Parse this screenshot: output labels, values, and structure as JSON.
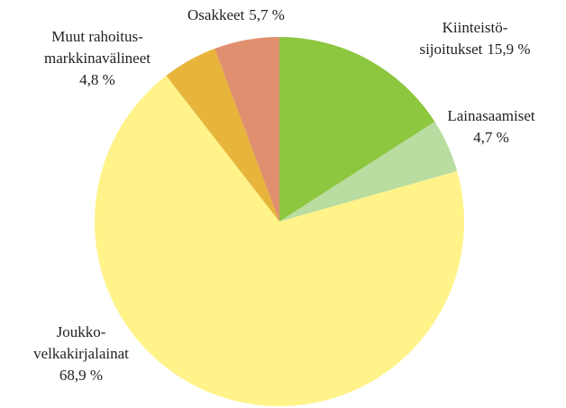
{
  "chart_data": {
    "type": "pie",
    "categories": [
      [
        "Kiinteistö-",
        "sijoitukset"
      ],
      [
        "Lainasaamiset"
      ],
      [
        "Joukko-",
        "velkakirjalainat"
      ],
      [
        "Muut rahoitus-",
        "markkinavälineet"
      ],
      [
        "Osakkeet"
      ]
    ],
    "values": [
      15.9,
      4.7,
      68.9,
      4.8,
      5.7
    ],
    "value_labels": [
      "15,9 %",
      "4,7 %",
      "68,9 %",
      "4,8 %",
      "5,7 %"
    ],
    "colors": [
      "#8dc63f",
      "#b9dca0",
      "#fff38a",
      "#e8b53c",
      "#e0906e"
    ]
  }
}
